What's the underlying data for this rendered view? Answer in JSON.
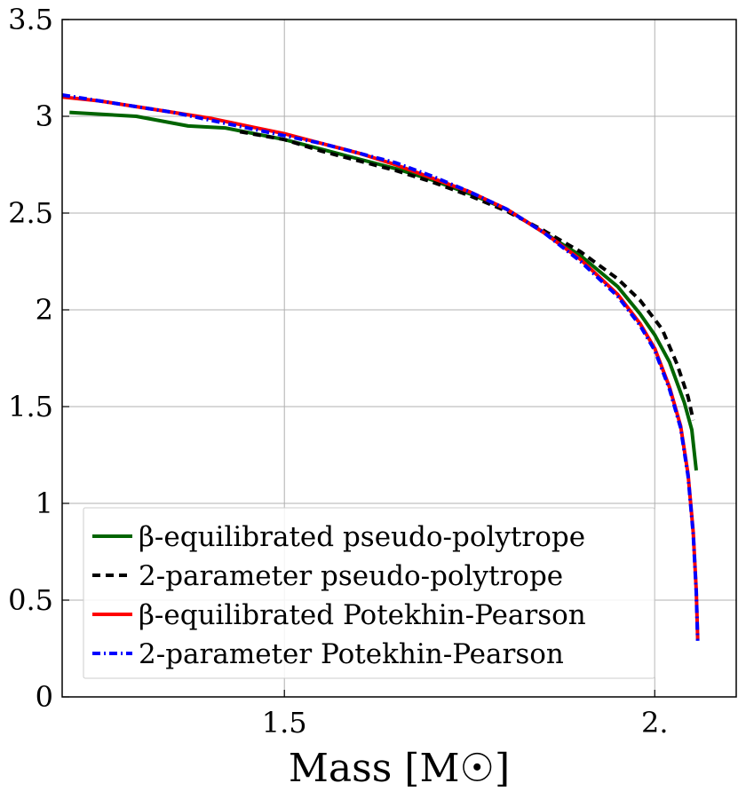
{
  "chart_data": {
    "type": "line",
    "title": "",
    "xlabel": "Mass [M☉]",
    "ylabel": "",
    "xlim": [
      1.2,
      2.11
    ],
    "ylim": [
      0,
      3.5
    ],
    "grid": true,
    "legend_position": "bottom-left",
    "xticks": [
      {
        "value": 1.5,
        "label": "1.5"
      },
      {
        "value": 2.0,
        "label": "2."
      }
    ],
    "yticks": [
      {
        "value": 0,
        "label": "0"
      },
      {
        "value": 0.5,
        "label": "0.5"
      },
      {
        "value": 1,
        "label": "1"
      },
      {
        "value": 1.5,
        "label": "1.5"
      },
      {
        "value": 2,
        "label": "2"
      },
      {
        "value": 2.5,
        "label": "2.5"
      },
      {
        "value": 3,
        "label": "3"
      },
      {
        "value": 3.5,
        "label": "3.5"
      }
    ],
    "series": [
      {
        "name": "β-equilibrated pseudo-polytrope",
        "color": "#006400",
        "style": "solid",
        "points": [
          [
            1.21,
            3.02
          ],
          [
            1.3,
            3.0
          ],
          [
            1.37,
            2.95
          ],
          [
            1.42,
            2.94
          ],
          [
            1.5,
            2.88
          ],
          [
            1.55,
            2.83
          ],
          [
            1.6,
            2.78
          ],
          [
            1.65,
            2.73
          ],
          [
            1.7,
            2.67
          ],
          [
            1.75,
            2.6
          ],
          [
            1.8,
            2.52
          ],
          [
            1.85,
            2.4
          ],
          [
            1.9,
            2.28
          ],
          [
            1.95,
            2.12
          ],
          [
            1.98,
            1.98
          ],
          [
            2.0,
            1.87
          ],
          [
            2.02,
            1.73
          ],
          [
            2.04,
            1.52
          ],
          [
            2.05,
            1.38
          ],
          [
            2.056,
            1.17
          ]
        ]
      },
      {
        "name": "2-parameter pseudo-polytrope",
        "color": "#000000",
        "style": "dashed",
        "points": [
          [
            1.44,
            2.92
          ],
          [
            1.5,
            2.88
          ],
          [
            1.55,
            2.82
          ],
          [
            1.6,
            2.77
          ],
          [
            1.65,
            2.72
          ],
          [
            1.7,
            2.66
          ],
          [
            1.75,
            2.59
          ],
          [
            1.8,
            2.51
          ],
          [
            1.85,
            2.41
          ],
          [
            1.9,
            2.3
          ],
          [
            1.95,
            2.16
          ],
          [
            1.98,
            2.05
          ],
          [
            2.01,
            1.9
          ],
          [
            2.03,
            1.72
          ],
          [
            2.045,
            1.55
          ],
          [
            2.052,
            1.43
          ]
        ]
      },
      {
        "name": "β-equilibrated Potekhin-Pearson",
        "color": "#ff0000",
        "style": "solid",
        "points": [
          [
            1.2,
            3.1
          ],
          [
            1.25,
            3.08
          ],
          [
            1.3,
            3.05
          ],
          [
            1.35,
            3.02
          ],
          [
            1.4,
            2.99
          ],
          [
            1.45,
            2.95
          ],
          [
            1.5,
            2.91
          ],
          [
            1.55,
            2.86
          ],
          [
            1.6,
            2.81
          ],
          [
            1.65,
            2.75
          ],
          [
            1.7,
            2.68
          ],
          [
            1.75,
            2.61
          ],
          [
            1.8,
            2.52
          ],
          [
            1.85,
            2.4
          ],
          [
            1.9,
            2.26
          ],
          [
            1.95,
            2.08
          ],
          [
            1.98,
            1.93
          ],
          [
            2.0,
            1.8
          ],
          [
            2.02,
            1.6
          ],
          [
            2.035,
            1.4
          ],
          [
            2.045,
            1.15
          ],
          [
            2.052,
            0.85
          ],
          [
            2.056,
            0.55
          ],
          [
            2.058,
            0.3
          ]
        ]
      },
      {
        "name": "2-parameter Potekhin-Pearson",
        "color": "#0000ff",
        "style": "dashdot",
        "points": [
          [
            1.2,
            3.11
          ],
          [
            1.25,
            3.08
          ],
          [
            1.3,
            3.05
          ],
          [
            1.35,
            3.02
          ],
          [
            1.4,
            2.98
          ],
          [
            1.45,
            2.94
          ],
          [
            1.5,
            2.9
          ],
          [
            1.55,
            2.86
          ],
          [
            1.6,
            2.81
          ],
          [
            1.65,
            2.76
          ],
          [
            1.7,
            2.69
          ],
          [
            1.75,
            2.61
          ],
          [
            1.8,
            2.52
          ],
          [
            1.85,
            2.4
          ],
          [
            1.9,
            2.25
          ],
          [
            1.95,
            2.07
          ],
          [
            1.98,
            1.92
          ],
          [
            2.0,
            1.79
          ],
          [
            2.02,
            1.59
          ],
          [
            2.035,
            1.39
          ],
          [
            2.045,
            1.14
          ],
          [
            2.052,
            0.84
          ],
          [
            2.056,
            0.54
          ],
          [
            2.058,
            0.29
          ]
        ]
      }
    ]
  }
}
